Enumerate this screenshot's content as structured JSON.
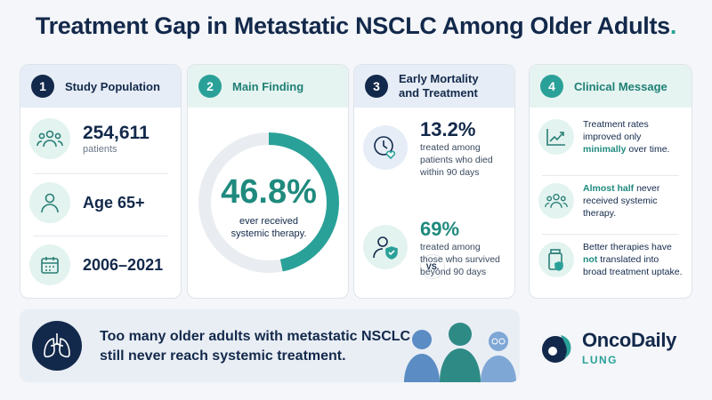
{
  "title": {
    "text": "Treatment Gap in Metastatic NSCLC Among Older Adults",
    "dot": "."
  },
  "card1": {
    "num": "1",
    "heading": "Study Population",
    "patients_value": "254,611",
    "patients_label": "patients",
    "age": "Age 65+",
    "years": "2006–2021"
  },
  "card2": {
    "num": "2",
    "heading": "Main Finding",
    "percent": "46.8%",
    "caption_line1": "ever received",
    "caption_line2": "systemic therapy.",
    "ring_fraction": 0.468
  },
  "card3": {
    "num": "3",
    "heading_line1": "Early Mortality",
    "heading_line2": "and Treatment",
    "stat1": "13.2%",
    "stat1_desc": "treated among patients who died within 90 days",
    "vs": "VS.",
    "stat2": "69%",
    "stat2_desc": "treated among those who survived beyond 90 days"
  },
  "card4": {
    "num": "4",
    "heading": "Clinical Message",
    "msg1_a": "Treatment rates improved only ",
    "msg1_hl": "minimally",
    "msg1_b": " over time.",
    "msg2_hl": "Almost half",
    "msg2_b": " never received systemic therapy.",
    "msg3_a": "Better therapies have ",
    "msg3_hl": "not",
    "msg3_b": " translated into broad treatment uptake."
  },
  "banner": {
    "line1": "Too many older adults with metastatic NSCLC",
    "line2": "still never reach systemic treatment."
  },
  "logo": {
    "name": "OncoDaily",
    "sub": "LUNG"
  },
  "colors": {
    "navy": "#13294b",
    "teal": "#2aa198"
  },
  "icons": [
    "people-group-icon",
    "person-icon",
    "calendar-icon",
    "clock-heart-icon",
    "person-shield-icon",
    "trend-up-icon",
    "medicine-bottle-icon",
    "lungs-icon"
  ]
}
